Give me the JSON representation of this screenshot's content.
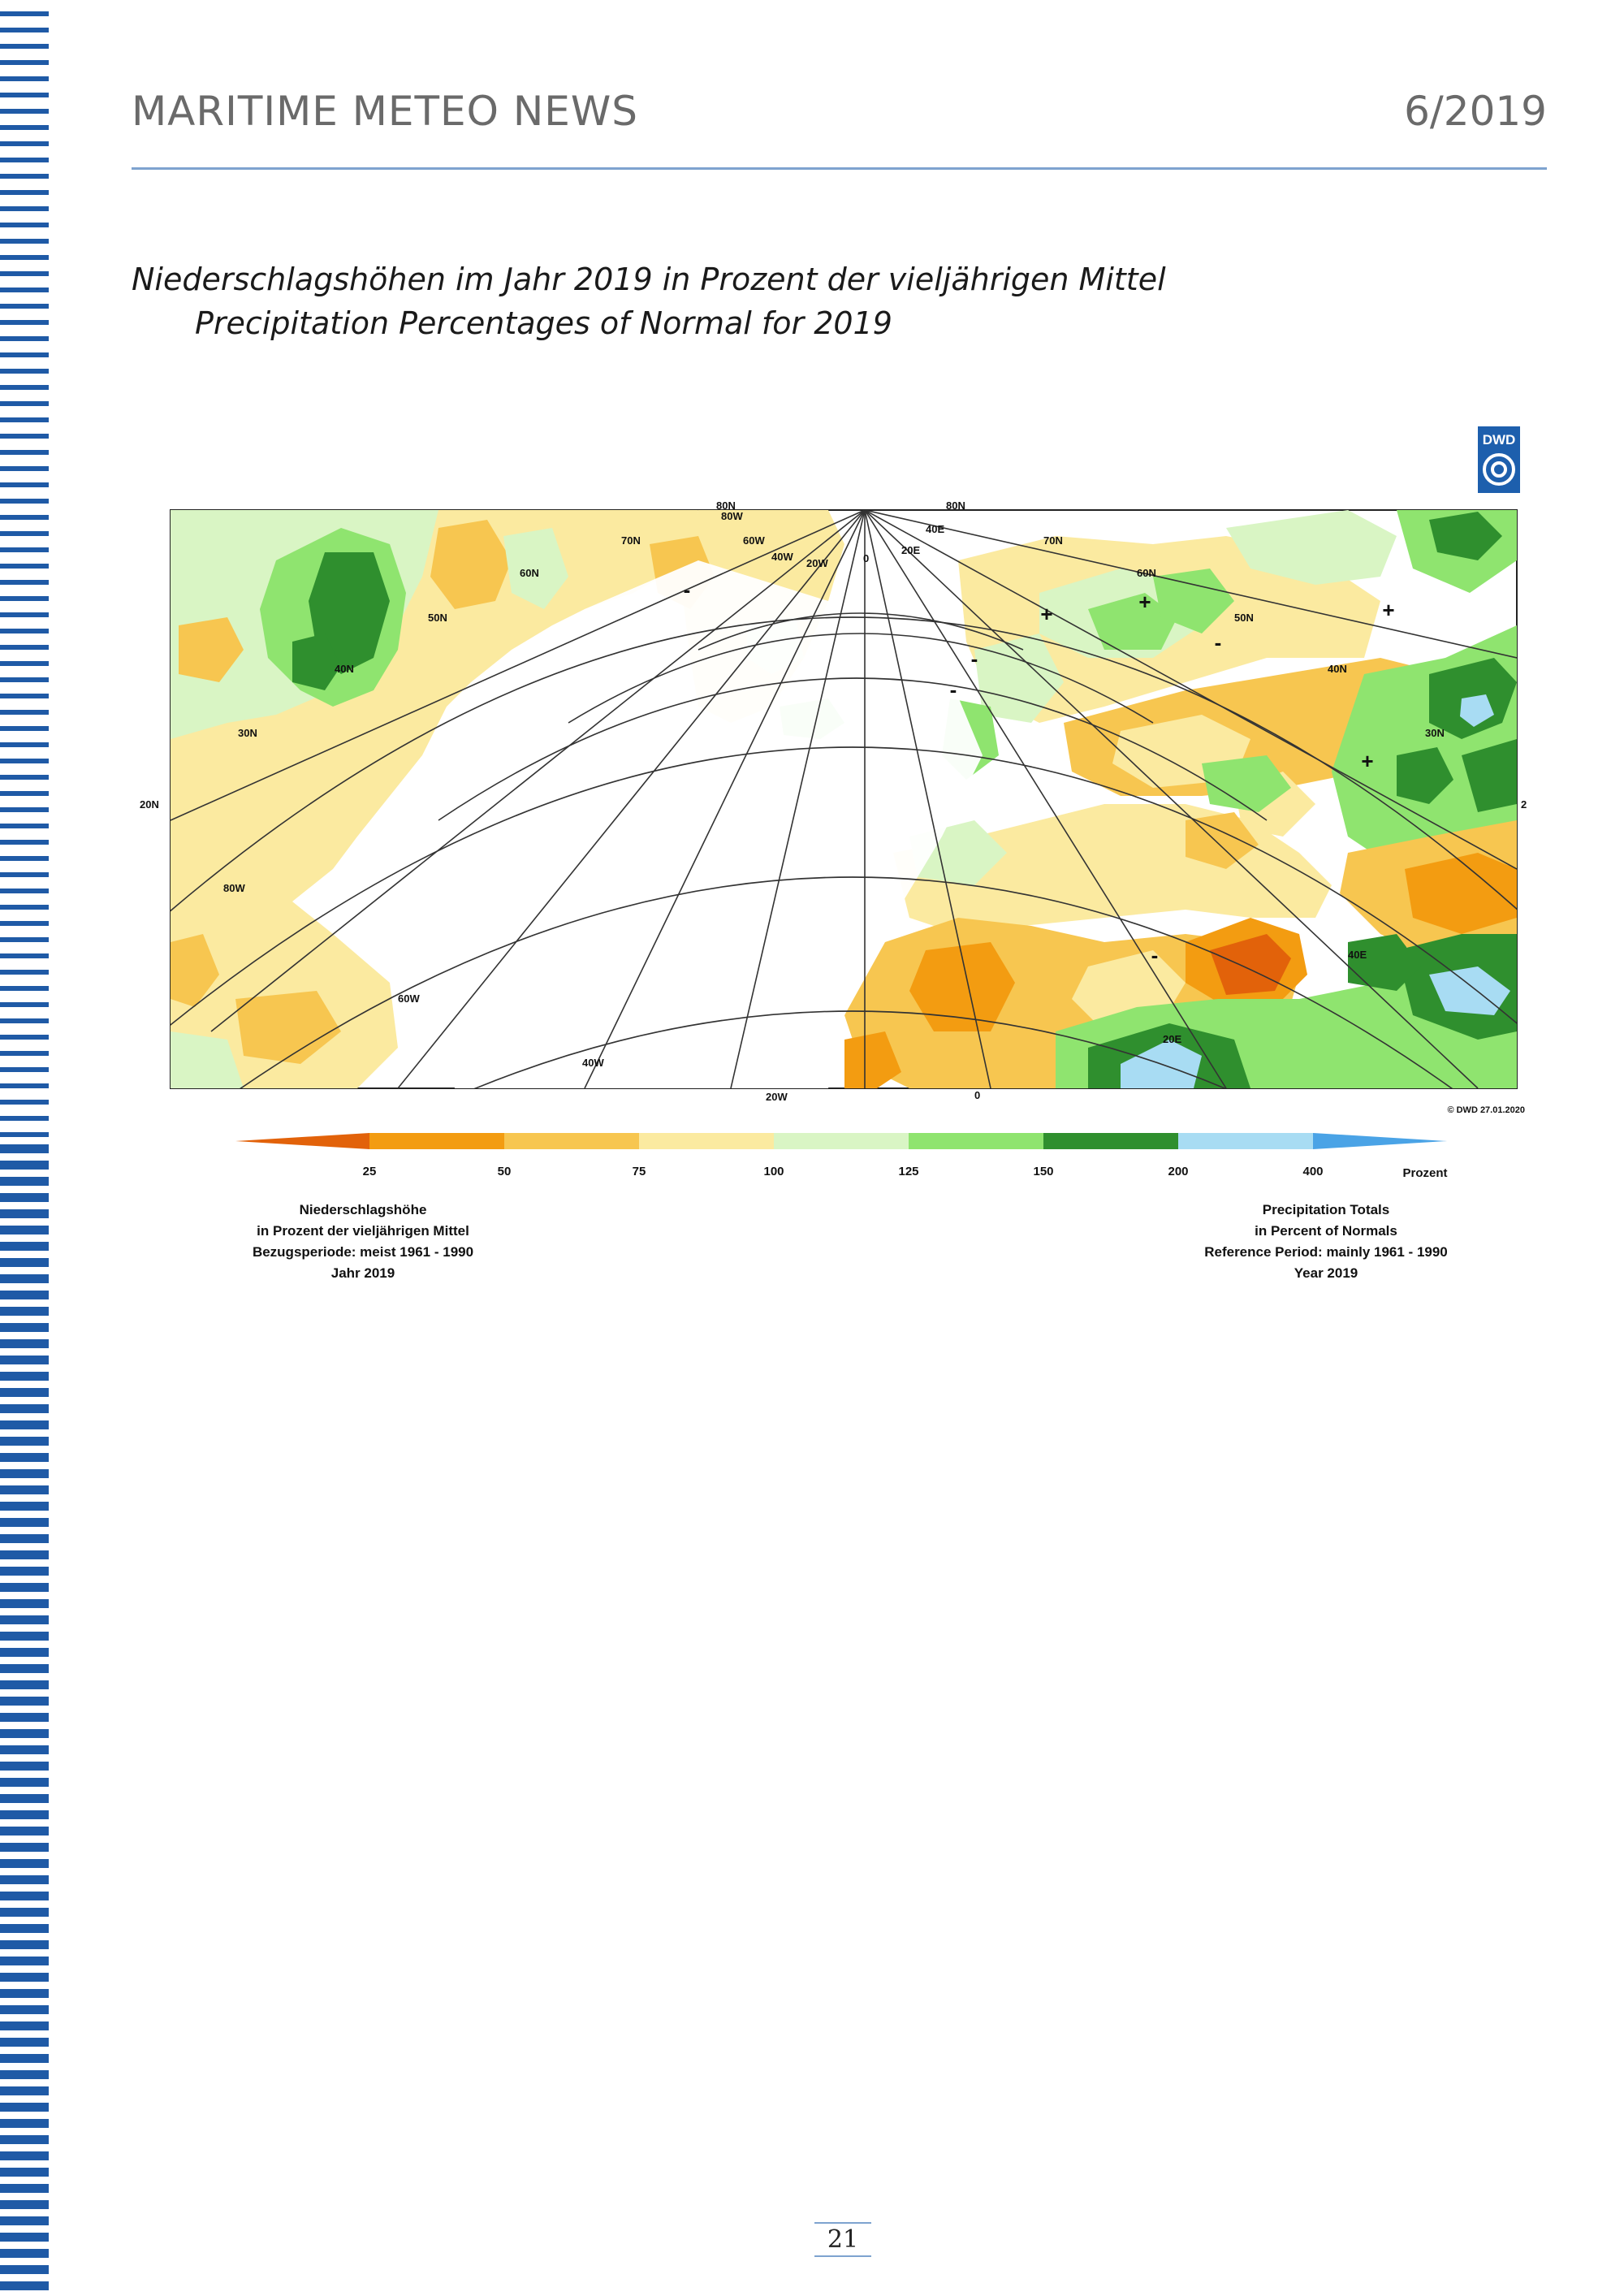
{
  "header": {
    "title": "MARITIME METEO NEWS",
    "issue": "6/2019"
  },
  "subtitle": {
    "german": "Niederschlagshöhen im Jahr 2019 in Prozent der vieljährigen Mittel",
    "english": "Precipitation Percentages of Normal for 2019"
  },
  "map": {
    "logo_text": "DWD",
    "copyright": "© DWD 27.01.2020",
    "lat_labels_left": [
      "20N"
    ],
    "coord_labels": [
      "80N",
      "80W",
      "60W",
      "70N",
      "40W",
      "20W",
      "0",
      "80N",
      "40E",
      "20E",
      "70N",
      "60N",
      "60N",
      "50N",
      "50N",
      "40N",
      "40N",
      "30N",
      "30N",
      "20N",
      "80W",
      "60W",
      "40W",
      "20W",
      "0",
      "20E",
      "40E",
      "2"
    ],
    "anomaly_signs": [
      "+",
      "-",
      "-",
      "+",
      "+",
      "-",
      "-",
      "-",
      "+"
    ],
    "legend": {
      "ticks": [
        "25",
        "50",
        "75",
        "100",
        "125",
        "150",
        "200",
        "400"
      ],
      "unit": "Prozent",
      "colors": [
        "#e2620a",
        "#f39c11",
        "#f7c650",
        "#fbeaa0",
        "#d9f5c4",
        "#8fe46f",
        "#2f8f2e",
        "#a8dcf3",
        "#4aa3e6"
      ],
      "left_caption": [
        "Niederschlagshöhe",
        "in Prozent der vieljährigen Mittel",
        "Bezugsperiode: meist 1961 - 1990",
        "Jahr 2019"
      ],
      "right_caption": [
        "Precipitation Totals",
        "in Percent of Normals",
        "Reference Period: mainly 1961 - 1990",
        "Year 2019"
      ]
    }
  },
  "footer": {
    "page_number": "21"
  }
}
